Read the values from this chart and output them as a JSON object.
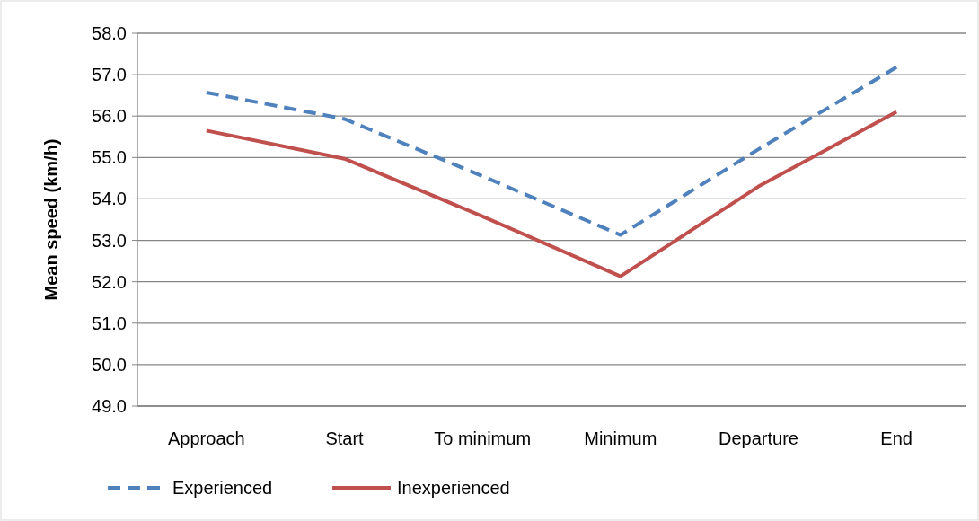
{
  "chart_data": {
    "type": "line",
    "ylabel": "Mean speed (km/h)",
    "categories": [
      "Approach",
      "Start",
      "To minimum",
      "Minimum",
      "Departure",
      "End"
    ],
    "series": [
      {
        "name": "Experienced",
        "color": "#4f81bd",
        "line_style": "dashed",
        "values": [
          56.57,
          55.93,
          54.55,
          53.13,
          55.2,
          57.18
        ]
      },
      {
        "name": "Inexperienced",
        "color": "#c0504d",
        "line_style": "solid",
        "values": [
          55.65,
          54.97,
          53.58,
          52.13,
          54.3,
          56.1
        ]
      }
    ],
    "ylim": [
      49,
      58
    ],
    "yticks": [
      {
        "value": 49,
        "label": "49.0"
      },
      {
        "value": 50,
        "label": "50.0"
      },
      {
        "value": 51,
        "label": "51.0"
      },
      {
        "value": 52,
        "label": "52.0"
      },
      {
        "value": 53,
        "label": "53.0"
      },
      {
        "value": 54,
        "label": "54.0"
      },
      {
        "value": 55,
        "label": "55.0"
      },
      {
        "value": 56,
        "label": "56.0"
      },
      {
        "value": 57,
        "label": "57.0"
      },
      {
        "value": 58,
        "label": "58.0"
      }
    ],
    "grid": "y",
    "legend": "bottom",
    "marker": "none"
  }
}
